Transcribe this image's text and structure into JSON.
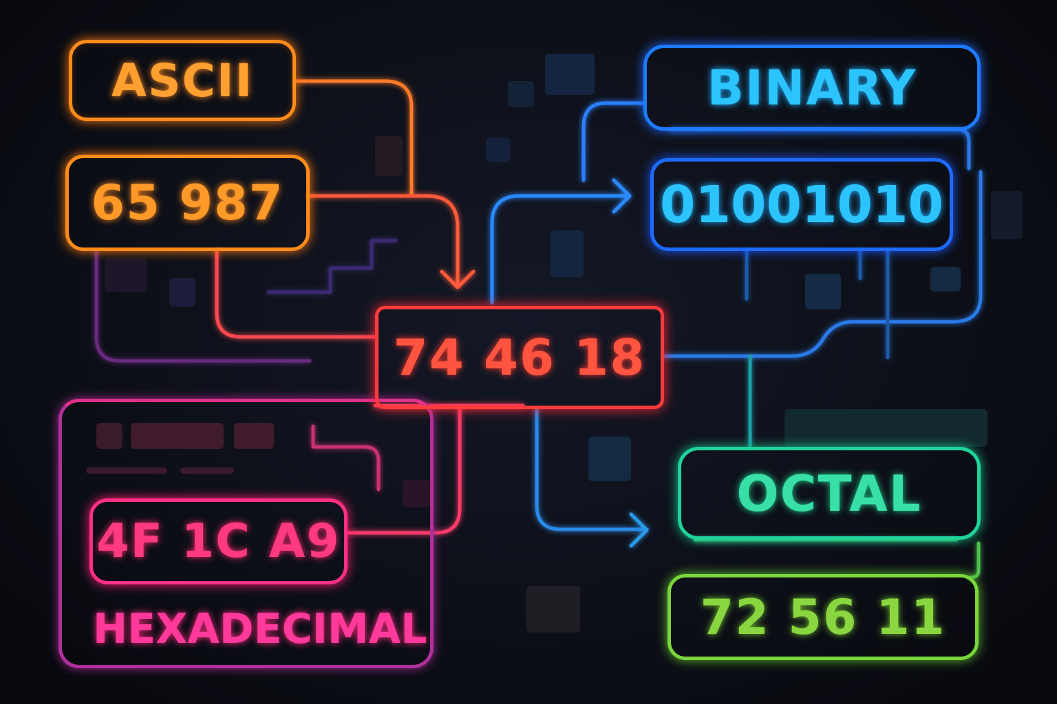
{
  "nodes": {
    "ascii_label": "ASCII",
    "ascii_value": "65 987",
    "center_value": "74 46 18",
    "binary_label": "BINARY",
    "binary_value": "01001010",
    "octal_label": "OCTAL",
    "octal_value": "72 56 11",
    "hex_value": "4F 1C A9",
    "hex_label": "HEXADECIMAL"
  },
  "colors": {
    "ascii": "#ff8c1a",
    "center": "#ff3b3b",
    "binary": "#1e7bff",
    "binary_text": "#2cc4ff",
    "octal": "#1fd39a",
    "octal_value": "#7ad63a",
    "hex": "#ff2f86",
    "hex_panel": "#b0309a",
    "background": "#0b0d14"
  }
}
